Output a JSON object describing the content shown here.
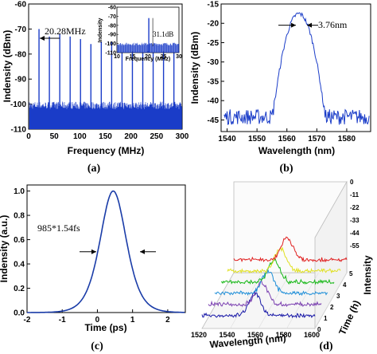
{
  "chart_data": [
    {
      "id": "a",
      "type": "line",
      "panel_label": "(a)",
      "xlabel": "Frequency (MHz)",
      "ylabel": "Indensity (dBm)",
      "xlim": [
        0,
        300
      ],
      "ylim": [
        -110,
        -60
      ],
      "xticks": [
        0,
        50,
        100,
        150,
        200,
        250,
        300
      ],
      "yticks": [
        -110,
        -100,
        -90,
        -80,
        -70,
        -60
      ],
      "noise_floor": -104,
      "peak_spacing_MHz": 20.28,
      "peaks_x": [
        20.28,
        40.56,
        60.84,
        81.12,
        101.4,
        121.68,
        141.96,
        162.24,
        182.52,
        202.8,
        223.08,
        243.36,
        263.64,
        283.92
      ],
      "peaks_y": [
        -70,
        -73,
        -72,
        -73,
        -74,
        -76,
        -75,
        -75,
        -76,
        -76,
        -76,
        -77,
        -78,
        -77
      ],
      "annotation": "20.28MHz",
      "inset": {
        "xlabel": "Frequency (MHz)",
        "ylabel": "Indensity",
        "xlim": [
          10,
          30
        ],
        "ylim": [
          -110,
          -60
        ],
        "xticks": [
          10,
          15,
          20,
          25,
          30
        ],
        "yticks": [
          -110,
          -100,
          -90,
          -80,
          -70,
          -60
        ],
        "peak_x": 20.28,
        "peak_y": -72,
        "floor": -103,
        "annotation": "31.1dB"
      }
    },
    {
      "id": "b",
      "type": "line",
      "panel_label": "(b)",
      "xlabel": "Wavelength (nm)",
      "ylabel": "Indensity (dBm)",
      "xlim": [
        1538,
        1588
      ],
      "ylim": [
        -48,
        -15
      ],
      "xticks": [
        1540,
        1550,
        1560,
        1570,
        1580
      ],
      "yticks": [
        -45,
        -40,
        -35,
        -30,
        -25,
        -20,
        -15
      ],
      "center_nm": 1564,
      "peak_dBm": -17.5,
      "floor_dBm": -45,
      "annotation": "3.76nm"
    },
    {
      "id": "c",
      "type": "line",
      "panel_label": "(c)",
      "xlabel": "Time (ps)",
      "ylabel": "Indensity (a.u.)",
      "xlim": [
        -2,
        2.5
      ],
      "ylim": [
        0,
        1.05
      ],
      "xticks": [
        -2,
        -1,
        0,
        1,
        2
      ],
      "yticks": [
        0.0,
        0.2,
        0.4,
        0.6,
        0.8,
        1.0
      ],
      "center_ps": 0.45,
      "peak": 1.0,
      "annotation": "985*1.54fs"
    },
    {
      "id": "d",
      "type": "line",
      "panel_label": "(d)",
      "xlabel": "Wavelength (nm)",
      "ylabel": "Intensity",
      "zlabel": "Time (h)",
      "xticks": [
        1520,
        1540,
        1560,
        1580,
        1600
      ],
      "zticks": [
        0,
        1,
        2,
        3,
        4,
        5
      ],
      "yticks": [
        0,
        -11,
        -22,
        -33,
        -44,
        -55
      ],
      "series_colors": [
        "#1a1aa8",
        "#7a3fb0",
        "#1f8fd8",
        "#18b818",
        "#e0e020",
        "#e02020"
      ]
    }
  ]
}
